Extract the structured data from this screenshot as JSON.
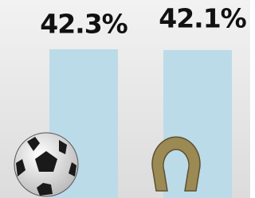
{
  "chart_data": {
    "type": "bar",
    "values": [
      42.3,
      42.1
    ],
    "value_labels": [
      "42.3%",
      "42.1%"
    ],
    "color": "#bcdbe8"
  }
}
